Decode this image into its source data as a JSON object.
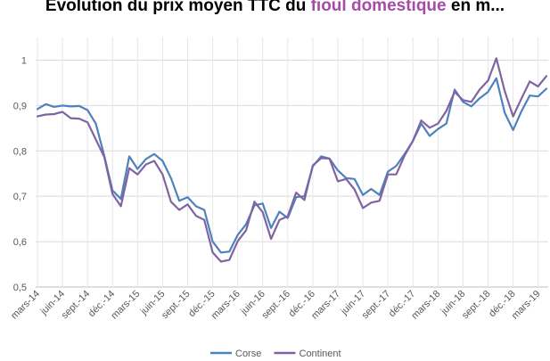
{
  "chart_data": {
    "type": "line",
    "title": {
      "prefix": "Évolution du prix moyen TTC du ",
      "highlight": "fioul domestique",
      "suffix": " en m..."
    },
    "xlabel": "",
    "ylabel": "",
    "ylim": [
      0.5,
      1.05
    ],
    "yticks": [
      "1",
      "0,9",
      "0,8",
      "0,7",
      "0,6",
      "0,5"
    ],
    "ytick_values": [
      1,
      0.9,
      0.8,
      0.7,
      0.6,
      0.5
    ],
    "grid": true,
    "legend_position": "bottom",
    "x_tick_labels": [
      "mars-14",
      "juin-14",
      "sept.-14",
      "déc.-14",
      "mars-15",
      "juin-15",
      "sept.-15",
      "déc.-15",
      "mars-16",
      "juin-16",
      "sept.-16",
      "déc.-16",
      "mars-17",
      "juin-17",
      "sept.-17",
      "déc.-17",
      "mars-18",
      "juin-18",
      "sept.-18",
      "déc.-18",
      "mars-19"
    ],
    "x": [
      "mars-14",
      "avr.-14",
      "mai-14",
      "juin-14",
      "juil.-14",
      "août-14",
      "sept.-14",
      "oct.-14",
      "nov.-14",
      "déc.-14",
      "janv.-15",
      "févr.-15",
      "mars-15",
      "avr.-15",
      "mai-15",
      "juin-15",
      "juil.-15",
      "août-15",
      "sept.-15",
      "oct.-15",
      "nov.-15",
      "déc.-15",
      "janv.-16",
      "févr.-16",
      "mars-16",
      "avr.-16",
      "mai-16",
      "juin-16",
      "juil.-16",
      "août-16",
      "sept.-16",
      "oct.-16",
      "nov.-16",
      "déc.-16",
      "janv.-17",
      "févr.-17",
      "mars-17",
      "avr.-17",
      "mai-17",
      "juin-17",
      "juil.-17",
      "août-17",
      "sept.-17",
      "oct.-17",
      "nov.-17",
      "déc.-17",
      "janv.-18",
      "févr.-18",
      "mars-18",
      "avr.-18",
      "mai-18",
      "juin-18",
      "juil.-18",
      "août-18",
      "sept.-18",
      "oct.-18",
      "nov.-18",
      "déc.-18",
      "janv.-19",
      "févr.-19",
      "mars-19",
      "avr.-19"
    ],
    "series": [
      {
        "name": "Corse",
        "color": "#4f81bd",
        "values": [
          0.892,
          0.903,
          0.897,
          0.9,
          0.898,
          0.899,
          0.89,
          0.86,
          0.79,
          0.713,
          0.694,
          0.788,
          0.76,
          0.782,
          0.793,
          0.778,
          0.74,
          0.69,
          0.698,
          0.678,
          0.67,
          0.6,
          0.576,
          0.578,
          0.615,
          0.638,
          0.68,
          0.684,
          0.63,
          0.666,
          0.652,
          0.698,
          0.7,
          0.766,
          0.788,
          0.783,
          0.757,
          0.74,
          0.738,
          0.703,
          0.716,
          0.703,
          0.754,
          0.767,
          0.793,
          0.822,
          0.86,
          0.833,
          0.848,
          0.86,
          0.935,
          0.908,
          0.898,
          0.916,
          0.93,
          0.96,
          0.884,
          0.846,
          0.887,
          0.922,
          0.92,
          0.937
        ]
      },
      {
        "name": "Continent",
        "color": "#8064a2",
        "values": [
          0.876,
          0.88,
          0.881,
          0.886,
          0.872,
          0.871,
          0.863,
          0.825,
          0.787,
          0.705,
          0.678,
          0.762,
          0.748,
          0.77,
          0.778,
          0.748,
          0.688,
          0.67,
          0.682,
          0.657,
          0.648,
          0.576,
          0.556,
          0.56,
          0.601,
          0.625,
          0.688,
          0.665,
          0.606,
          0.648,
          0.656,
          0.708,
          0.692,
          0.768,
          0.784,
          0.783,
          0.733,
          0.738,
          0.715,
          0.674,
          0.686,
          0.69,
          0.748,
          0.748,
          0.79,
          0.822,
          0.867,
          0.851,
          0.86,
          0.888,
          0.93,
          0.912,
          0.908,
          0.935,
          0.955,
          1.004,
          0.932,
          0.876,
          0.915,
          0.953,
          0.942,
          0.965
        ]
      }
    ]
  }
}
